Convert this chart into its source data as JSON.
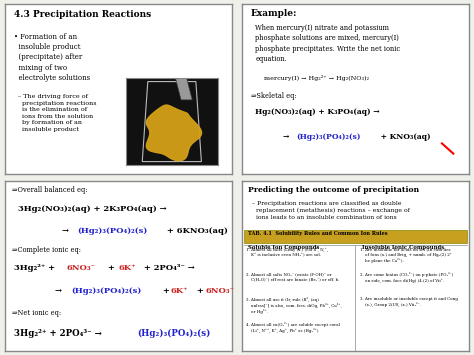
{
  "bg_color": "#f0f0eb",
  "panel_bg": "#ffffff",
  "border_color": "#aaaaaa",
  "panel1": {
    "title": "4.3 Precipitation Reactions",
    "bullet1": "• Formation of an\n  insoluble product\n  (precipitate) after\n  mixing of two\n  electrolyte solutions",
    "bullet2": "  – The driving force of\n    precipitation reactions\n    is the elimination of\n    ions from the solution\n    by formation of an\n    insoluble product"
  },
  "panel2": {
    "title": "Example:",
    "text1": "When mercury(I) nitrate and potassium\nphosphate solutions are mixed, mercury(I)\nphosphate precipitates. Write the net ionic\nequation.",
    "eq1": "mercury(I) → Hg₂²⁺ → Hg₂(NO₃)₂",
    "skeletal": "⇒Skeletal eq:",
    "eq2a": "Hg₂(NO₃)₂(aq) + K₃PO₄(aq) →",
    "eq2b_arrow": "→ ",
    "eq2b_blue": "(Hg₂)₃(PO₄)₂(s)",
    "eq2b_black": " + KNO₃(aq)"
  },
  "panel3": {
    "overall": "⇒Overall balanced eq:",
    "eq1a": "3Hg₂(NO₃)₂(aq) + 2K₃PO₄(aq) →",
    "eq1b_arrow": "→ ",
    "eq1b_blue": "(Hg₂)₃(PO₄)₂(s)",
    "eq1b_black": " + 6KNO₃(aq)",
    "complete": "⇒Complete ionic eq:",
    "eq2a_black1": "3Hg₂²⁺ + ",
    "eq2a_red1": "6NO₃⁻",
    "eq2a_black2": " + ",
    "eq2a_red2": "6K⁺",
    "eq2a_black3": " + 2PO₄³⁻ →",
    "eq2b_arrow": "→ ",
    "eq2b_blue": "(Hg₂)₃(PO₄)₂(s)",
    "eq2b_black1": " + ",
    "eq2b_red1": "6K⁺",
    "eq2b_black2": " + ",
    "eq2b_red2": "6NO₃⁻",
    "net": "⇒Net ionic eq:",
    "eq3_black": "3Hg₂²⁺ + 2PO₄³⁻ → ",
    "eq3_blue": "(Hg₂)₃(PO₄)₂(s)"
  },
  "panel4": {
    "title": "Predicting the outcome of precipitation",
    "text1": "  – Precipitation reactions are classified as double\n    replacement (metathesis) reactions – exchange of\n    ions leads to an insoluble combination of ions",
    "table_header": "TAB. 4.1  Solubility Rules and Common Ion Rules",
    "col1": "Soluble Ion Compounds",
    "col2": "Insoluble Ionic Compounds",
    "table_left": [
      "1. Almost all salts (Limy (x.) (cof a², N,⁺,\n    K⁺ is inclusive even NH₄⁺) are sol.",
      "2. Almost all salts NO₃⁻ (exists (F-OH)⁻ or\n    C(H₂O)⁻) eff rest are binate (Br₃⁻) or eff. b.",
      "3. Almost all use it (Ir, rule (B², (aq)\n    unless[⁻] is also, com. fres. diOg, Pb²⁺, Cu²⁺,\n    or Hg²⁺.",
      "4. Almost all cu(O₄²⁻) are soluble except coral\n    (Li⁺, N⁺⁺, K⁺, Ag⁺, Pb⁺ as (Hg₂²⁺)"
    ],
    "table_right": [
      "1. Are insoluble for acids on set (In com-lies\n    of Ions (x.) and Brig, + numb. of Hg₂(2) 2⁺\n    be plane the Ca²⁺).",
      "2. Are come hiatus (CO₃²⁻) on p-phate (PO₄³⁻)\n    on side, com. face di(Hg) (4.(2) of Vii⁺.",
      "3. Are insoluble or insoluble except it and Cong\n    (x.), Group 2(US, (x.) Vii₄²⁻."
    ]
  }
}
